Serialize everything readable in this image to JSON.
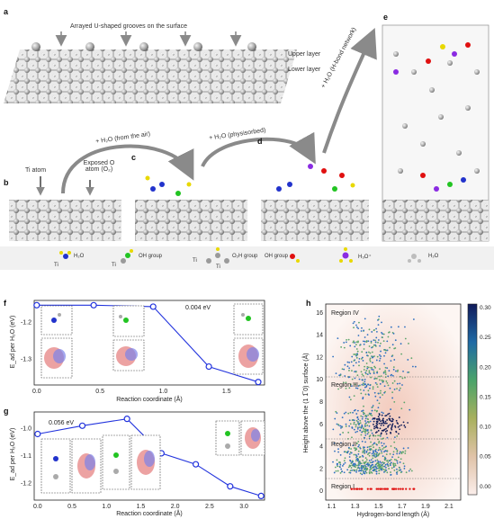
{
  "panels": {
    "a": {
      "letter": "a",
      "caption": "Arrayed U-shaped grooves on the surface",
      "upper": "Upper layer",
      "lower": "Lower layer"
    },
    "b": {
      "letter": "b",
      "ti_atom": "Ti atom",
      "exposed_o": "Exposed O atom (O₂)"
    },
    "c": {
      "letter": "c"
    },
    "d": {
      "letter": "d"
    },
    "e": {
      "letter": "e"
    },
    "arrows": {
      "from_air": "+ H₂O (from the air)",
      "physisorbed": "+ H₂O (physisorbed)",
      "network": "+ H₂O (H-bond network)"
    }
  },
  "legend": [
    {
      "name": "H2O",
      "text": "H₂O"
    },
    {
      "name": "OH group",
      "text": "OH group"
    },
    {
      "name": "O2H group",
      "text": "O₂H group"
    },
    {
      "name": "OH group 2",
      "text": "OH group"
    },
    {
      "name": "H3O+",
      "text": "H₃O⁺"
    },
    {
      "name": "H2O 2",
      "text": "H₂O"
    }
  ],
  "legend_ti": [
    "Ti",
    "Ti",
    "Ti",
    "Ti"
  ],
  "plot_f": {
    "letter": "f",
    "ylabel": "E_ad per H₂O (eV)",
    "xlabel": "Reaction coordinate (Å)",
    "annotation": "0.004 eV",
    "xticks": [
      "0.0",
      "0.5",
      "1.0",
      "1.5"
    ],
    "yticks": [
      "-1.2",
      "-1.3"
    ],
    "x": [
      0.0,
      0.45,
      0.92,
      1.36,
      1.75
    ],
    "y": [
      -1.153,
      -1.153,
      -1.157,
      -1.32,
      -1.362
    ]
  },
  "plot_g": {
    "letter": "g",
    "ylabel": "E_ad per H₂O (eV)",
    "xlabel": "Reaction coordinate (Å)",
    "annotation": "0.056 eV",
    "xticks": [
      "0.0",
      "0.5",
      "1.0",
      "1.5",
      "2.0",
      "2.5",
      "3.0"
    ],
    "yticks": [
      "-1.0",
      "-1.1",
      "-1.2"
    ],
    "x": [
      0.0,
      0.65,
      1.3,
      1.8,
      2.3,
      2.8,
      3.25
    ],
    "y": [
      -1.02,
      -0.99,
      -0.965,
      -1.09,
      -1.13,
      -1.21,
      -1.245
    ]
  },
  "plot_h": {
    "letter": "h",
    "ylabel": "Height above the (1 1̅ 0) surface (Å)",
    "xlabel": "Hydrogen-bond length (Å)",
    "xticks": [
      "1.1",
      "1.3",
      "1.5",
      "1.7",
      "1.9",
      "2.1"
    ],
    "yticks": [
      "0",
      "2",
      "4",
      "6",
      "8",
      "10",
      "12",
      "14",
      "16"
    ],
    "regions": [
      "Region IV",
      "Region III",
      "Region II",
      "Region I"
    ],
    "colorbar_ticks": [
      "0.30",
      "0.25",
      "0.20",
      "0.15",
      "0.10",
      "0.05",
      "0.00"
    ]
  },
  "colors": {
    "curve": "#2233dd",
    "ti": "#9a9a9a",
    "o_red": "#e01010",
    "h_yellow": "#e8d800",
    "oh_green": "#22c422",
    "h3o_purple": "#8a2be2",
    "n_blue": "#2233cc"
  }
}
